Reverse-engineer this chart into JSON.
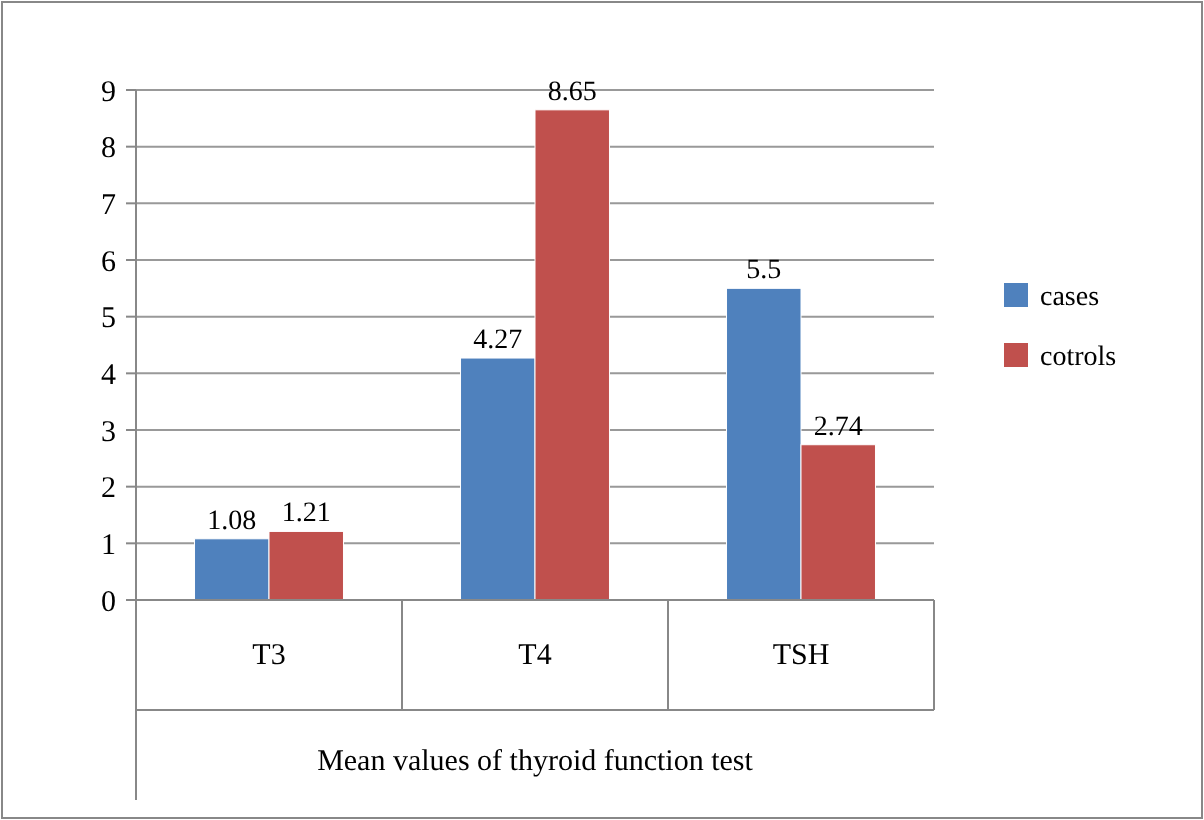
{
  "chart_data": {
    "type": "bar",
    "xlabel": "Mean values of thyroid function test",
    "categories": [
      "T3",
      "T4",
      "TSH"
    ],
    "series": [
      {
        "name": "cases",
        "color": "#4f81bd",
        "values": [
          1.08,
          4.27,
          5.5
        ]
      },
      {
        "name": "cotrols",
        "color": "#c0504d",
        "values": [
          1.21,
          8.65,
          2.74
        ]
      }
    ],
    "ylim": [
      0,
      9
    ],
    "yticks": [
      0,
      1,
      2,
      3,
      4,
      5,
      6,
      7,
      8,
      9
    ],
    "grid": "y",
    "legend": "right",
    "data_labels": true
  }
}
